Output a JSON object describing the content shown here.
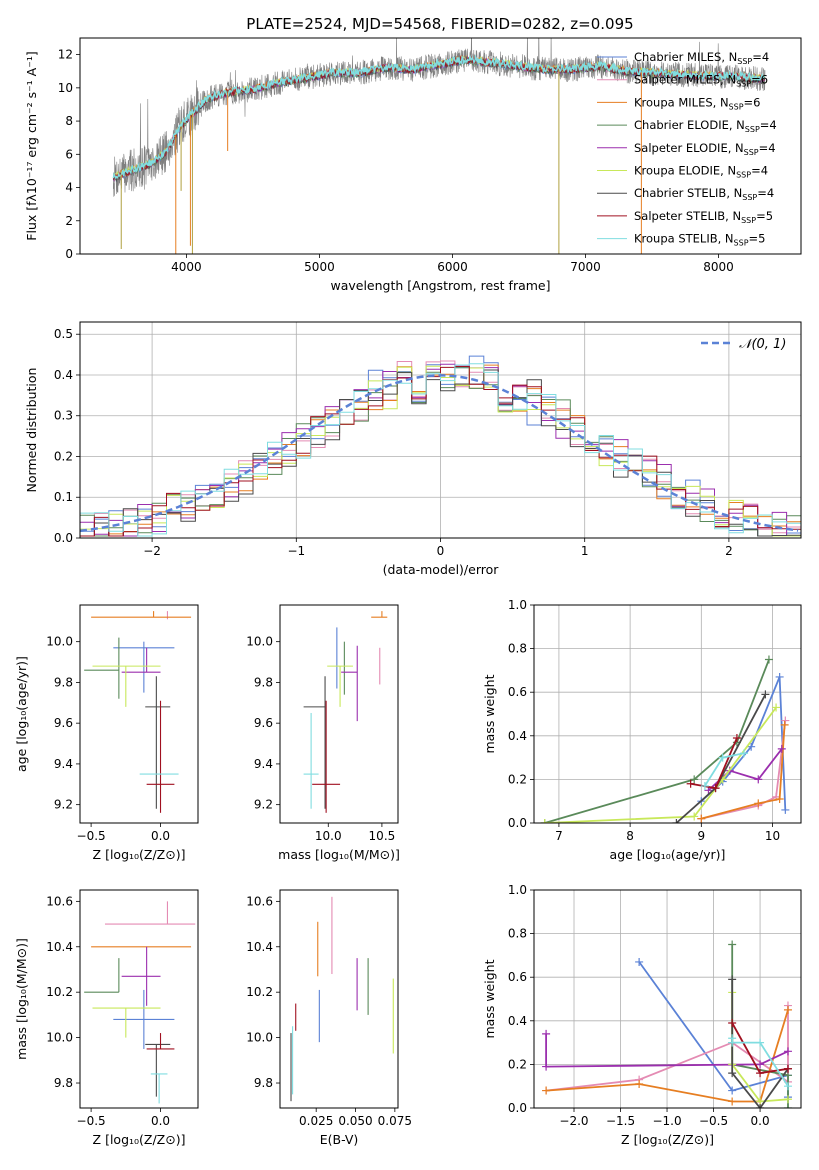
{
  "figure_title": "PLATE=2524, MJD=54568, FIBERID=0282, z=0.095",
  "colors": {
    "Chabrier MILES": "#5b82d6",
    "Salpeter MILES": "#e48bb3",
    "Kroupa MILES": "#e67e22",
    "Chabrier ELODIE": "#5a8a5a",
    "Salpeter ELODIE": "#9b2fae",
    "Kroupa ELODIE": "#c8e85a",
    "Chabrier STELIB": "#4a4a4a",
    "Salpeter STELIB": "#a01020",
    "Kroupa STELIB": "#80dde0"
  },
  "legend_spectrum": [
    {
      "label": "Chabrier MILES, N",
      "sub": "SSP",
      "suffix": "=4",
      "model": "Chabrier MILES"
    },
    {
      "label": "Salpeter MILES, N",
      "sub": "SSP",
      "suffix": "=6",
      "model": "Salpeter MILES"
    },
    {
      "label": "Kroupa MILES, N",
      "sub": "SSP",
      "suffix": "=6",
      "model": "Kroupa MILES"
    },
    {
      "label": "Chabrier ELODIE, N",
      "sub": "SSP",
      "suffix": "=4",
      "model": "Chabrier ELODIE"
    },
    {
      "label": "Salpeter ELODIE, N",
      "sub": "SSP",
      "suffix": "=4",
      "model": "Salpeter ELODIE"
    },
    {
      "label": "Kroupa ELODIE, N",
      "sub": "SSP",
      "suffix": "=4",
      "model": "Kroupa ELODIE"
    },
    {
      "label": "Chabrier STELIB, N",
      "sub": "SSP",
      "suffix": "=4",
      "model": "Chabrier STELIB"
    },
    {
      "label": "Salpeter STELIB, N",
      "sub": "SSP",
      "suffix": "=5",
      "model": "Salpeter STELIB"
    },
    {
      "label": "Kroupa STELIB, N",
      "sub": "SSP",
      "suffix": "=5",
      "model": "Kroupa STELIB"
    }
  ],
  "legend_distribution": {
    "label": "𝒩(0, 1)",
    "color": "#5b82d6"
  },
  "chart_data": [
    {
      "id": "spectrum",
      "type": "line",
      "xlabel": "wavelength [Angstrom, rest frame]",
      "ylabel": "Flux [fλ10⁻¹⁷ erg cm⁻² s⁻¹ A⁻¹]",
      "xlim": [
        3200,
        8620
      ],
      "ylim": [
        0,
        13
      ],
      "xticks": [
        4000,
        5000,
        6000,
        7000,
        8000
      ],
      "yticks": [
        0,
        2,
        4,
        6,
        8,
        10,
        12
      ],
      "grid": false,
      "legend": "right",
      "continuum": {
        "x": [
          3450,
          3550,
          3650,
          3750,
          3850,
          3950,
          4050,
          4150,
          4300,
          4500,
          4700,
          4900,
          5100,
          5300,
          5500,
          5700,
          5900,
          6100,
          6300,
          6500,
          6700,
          6900,
          7100,
          7300,
          7500,
          7700,
          7900,
          8100,
          8350
        ],
        "y": [
          4.6,
          4.9,
          5.2,
          5.5,
          6.2,
          7.6,
          8.5,
          9.3,
          9.7,
          9.9,
          10.3,
          10.6,
          10.9,
          10.9,
          11.2,
          11.1,
          11.4,
          11.7,
          11.5,
          11.3,
          11.1,
          11.1,
          11.3,
          11.0,
          10.9,
          10.8,
          10.7,
          10.7,
          10.5
        ]
      },
      "dips": [
        {
          "x": 3510,
          "y": 0.3
        },
        {
          "x": 3920,
          "y": 0.0
        },
        {
          "x": 3960,
          "y": 3.8
        },
        {
          "x": 4030,
          "y": 0.5
        },
        {
          "x": 4045,
          "y": 0.0
        },
        {
          "x": 4310,
          "y": 6.2
        },
        {
          "x": 6800,
          "y": 0.0
        },
        {
          "x": 7420,
          "y": 0.0
        }
      ]
    },
    {
      "id": "residuals",
      "type": "histogram",
      "xlabel": "(data-model)/error",
      "ylabel": "Normed distribution",
      "xlim": [
        -2.5,
        2.5
      ],
      "ylim": [
        0,
        0.53
      ],
      "xticks": [
        -2,
        -1,
        0,
        1,
        2
      ],
      "yticks": [
        0.0,
        0.1,
        0.2,
        0.3,
        0.4,
        0.5
      ],
      "grid": true,
      "legend": "top-right",
      "bin_width": 0.1,
      "reference": "N(0,1)"
    },
    {
      "id": "age-vs-Z",
      "type": "errorbar",
      "xlabel": "Z [log₁₀(Z/Z⊙)]",
      "ylabel": "age  [log₁₀(age/yr)]",
      "xlim": [
        -0.58,
        0.27
      ],
      "ylim": [
        9.11,
        10.18
      ],
      "xticks": [
        -0.5,
        0.0
      ],
      "yticks": [
        9.2,
        9.4,
        9.6,
        9.8,
        10.0
      ],
      "grid": false,
      "points": [
        {
          "model": "Chabrier MILES",
          "x": -0.12,
          "xerr": [
            0.22,
            0.22
          ],
          "y": 9.97,
          "yerr": [
            0.22,
            0.03
          ]
        },
        {
          "model": "Salpeter MILES",
          "x": 0.05,
          "xerr": [
            0.0,
            0.0
          ],
          "y": 10.11,
          "yerr": [
            0.0,
            0.04
          ]
        },
        {
          "model": "Kroupa MILES",
          "x": -0.05,
          "xerr": [
            0.45,
            0.27
          ],
          "y": 10.12,
          "yerr": [
            0.0,
            0.03
          ]
        },
        {
          "model": "Chabrier ELODIE",
          "x": -0.3,
          "xerr": [
            0.25,
            0.0
          ],
          "y": 9.86,
          "yerr": [
            0.14,
            0.16
          ]
        },
        {
          "model": "Salpeter ELODIE",
          "x": -0.1,
          "xerr": [
            0.18,
            0.1
          ],
          "y": 9.85,
          "yerr": [
            0.0,
            0.12
          ]
        },
        {
          "model": "Kroupa ELODIE",
          "x": -0.25,
          "xerr": [
            0.24,
            0.25
          ],
          "y": 9.88,
          "yerr": [
            0.2,
            0.0
          ]
        },
        {
          "model": "Chabrier STELIB",
          "x": -0.03,
          "xerr": [
            0.08,
            0.1
          ],
          "y": 9.68,
          "yerr": [
            0.5,
            0.15
          ]
        },
        {
          "model": "Salpeter STELIB",
          "x": 0.0,
          "xerr": [
            0.1,
            0.1
          ],
          "y": 9.3,
          "yerr": [
            0.14,
            0.41
          ]
        },
        {
          "model": "Kroupa STELIB",
          "x": -0.01,
          "xerr": [
            0.14,
            0.14
          ],
          "y": 9.35,
          "yerr": [
            0.0,
            0.0
          ]
        }
      ]
    },
    {
      "id": "age-vs-mass",
      "type": "errorbar",
      "xlabel": "mass [log₁₀(M/M⊙)]",
      "ylabel": "",
      "xlim": [
        9.55,
        10.65
      ],
      "ylim": [
        9.11,
        10.18
      ],
      "xticks": [
        10.0,
        10.5
      ],
      "yticks": [
        9.2,
        9.4,
        9.6,
        9.8,
        10.0
      ],
      "grid": false,
      "points": [
        {
          "model": "Chabrier MILES",
          "x": 10.08,
          "xerr": [
            0.0,
            0.0
          ],
          "y": 9.97,
          "yerr": [
            0.2,
            0.1
          ]
        },
        {
          "model": "Salpeter MILES",
          "x": 10.48,
          "xerr": [
            0.0,
            0.0
          ],
          "y": 9.97,
          "yerr": [
            0.18,
            0.0
          ]
        },
        {
          "model": "Kroupa MILES",
          "x": 10.5,
          "xerr": [
            0.1,
            0.05
          ],
          "y": 10.12,
          "yerr": [
            0.0,
            0.03
          ]
        },
        {
          "model": "Chabrier ELODIE",
          "x": 10.15,
          "xerr": [
            0.0,
            0.0
          ],
          "y": 9.86,
          "yerr": [
            0.12,
            0.14
          ]
        },
        {
          "model": "Salpeter ELODIE",
          "x": 10.27,
          "xerr": [
            0.15,
            0.0
          ],
          "y": 9.85,
          "yerr": [
            0.24,
            0.13
          ]
        },
        {
          "model": "Kroupa ELODIE",
          "x": 10.11,
          "xerr": [
            0.12,
            0.12
          ],
          "y": 9.88,
          "yerr": [
            0.2,
            0.0
          ]
        },
        {
          "model": "Chabrier STELIB",
          "x": 9.97,
          "xerr": [
            0.2,
            0.0
          ],
          "y": 9.68,
          "yerr": [
            0.5,
            0.15
          ]
        },
        {
          "model": "Salpeter STELIB",
          "x": 9.98,
          "xerr": [
            0.13,
            0.13
          ],
          "y": 9.3,
          "yerr": [
            0.14,
            0.41
          ]
        },
        {
          "model": "Kroupa STELIB",
          "x": 9.84,
          "xerr": [
            0.07,
            0.07
          ],
          "y": 9.35,
          "yerr": [
            0.17,
            0.3
          ]
        }
      ]
    },
    {
      "id": "weight-vs-age",
      "type": "line",
      "xlabel": "age  [log₁₀(age/yr)]",
      "ylabel": "mass weight",
      "xlim": [
        6.65,
        10.4
      ],
      "ylim": [
        0,
        1
      ],
      "xticks": [
        7,
        8,
        9,
        10
      ],
      "yticks": [
        0.0,
        0.2,
        0.4,
        0.6,
        0.8,
        1.0
      ],
      "grid": true,
      "series": [
        {
          "model": "Chabrier MILES",
          "x": [
            9.0,
            9.3,
            9.7,
            10.1,
            10.18
          ],
          "y": [
            0.1,
            0.19,
            0.35,
            0.67,
            0.06
          ]
        },
        {
          "model": "Salpeter MILES",
          "x": [
            9.0,
            9.8,
            10.05,
            10.18
          ],
          "y": [
            0.02,
            0.08,
            0.12,
            0.47
          ]
        },
        {
          "model": "Kroupa MILES",
          "x": [
            9.0,
            9.8,
            10.1,
            10.17
          ],
          "y": [
            0.02,
            0.09,
            0.11,
            0.45
          ]
        },
        {
          "model": "Chabrier ELODIE",
          "x": [
            6.8,
            8.9,
            9.5,
            9.95
          ],
          "y": [
            0.0,
            0.2,
            0.37,
            0.75
          ]
        },
        {
          "model": "Salpeter ELODIE",
          "x": [
            9.1,
            9.4,
            9.8,
            10.13
          ],
          "y": [
            0.15,
            0.24,
            0.2,
            0.34
          ]
        },
        {
          "model": "Kroupa ELODIE",
          "x": [
            6.8,
            8.9,
            9.3,
            10.05
          ],
          "y": [
            0.0,
            0.03,
            0.2,
            0.53
          ]
        },
        {
          "model": "Chabrier STELIB",
          "x": [
            8.65,
            9.2,
            9.9
          ],
          "y": [
            0.0,
            0.16,
            0.59
          ]
        },
        {
          "model": "Salpeter STELIB",
          "x": [
            8.85,
            9.2,
            9.5
          ],
          "y": [
            0.18,
            0.16,
            0.39
          ]
        },
        {
          "model": "Kroupa STELIB",
          "x": [
            9.05,
            9.3,
            9.6
          ],
          "y": [
            0.17,
            0.3,
            0.32
          ]
        }
      ]
    },
    {
      "id": "mass-vs-Z",
      "type": "errorbar",
      "xlabel": "Z [log₁₀(Z/Z⊙)]",
      "ylabel": "mass [log₁₀(M/M⊙)]",
      "xlim": [
        -0.58,
        0.27
      ],
      "ylim": [
        9.69,
        10.65
      ],
      "xticks": [
        -0.5,
        0.0
      ],
      "yticks": [
        9.8,
        10.0,
        10.2,
        10.4,
        10.6
      ],
      "grid": false,
      "points": [
        {
          "model": "Chabrier MILES",
          "x": -0.12,
          "xerr": [
            0.22,
            0.22
          ],
          "y": 10.08,
          "yerr": [
            0.13,
            0.13
          ]
        },
        {
          "model": "Salpeter MILES",
          "x": 0.05,
          "xerr": [
            0.45,
            0.2
          ],
          "y": 10.5,
          "yerr": [
            0.0,
            0.1
          ]
        },
        {
          "model": "Kroupa MILES",
          "x": -0.05,
          "xerr": [
            0.45,
            0.27
          ],
          "y": 10.4,
          "yerr": [
            0.0,
            0.0
          ]
        },
        {
          "model": "Chabrier ELODIE",
          "x": -0.3,
          "xerr": [
            0.25,
            0.0
          ],
          "y": 10.2,
          "yerr": [
            0.0,
            0.15
          ]
        },
        {
          "model": "Salpeter ELODIE",
          "x": -0.1,
          "xerr": [
            0.18,
            0.1
          ],
          "y": 10.27,
          "yerr": [
            0.13,
            0.13
          ]
        },
        {
          "model": "Kroupa ELODIE",
          "x": -0.25,
          "xerr": [
            0.24,
            0.25
          ],
          "y": 10.13,
          "yerr": [
            0.13,
            0.0
          ]
        },
        {
          "model": "Chabrier STELIB",
          "x": -0.03,
          "xerr": [
            0.08,
            0.1
          ],
          "y": 9.97,
          "yerr": [
            0.23,
            0.0
          ]
        },
        {
          "model": "Salpeter STELIB",
          "x": 0.0,
          "xerr": [
            0.1,
            0.1
          ],
          "y": 9.95,
          "yerr": [
            0.0,
            0.07
          ]
        },
        {
          "model": "Kroupa STELIB",
          "x": -0.01,
          "xerr": [
            0.06,
            0.06
          ],
          "y": 9.84,
          "yerr": [
            0.13,
            0.0
          ]
        }
      ]
    },
    {
      "id": "mass-vs-ebv",
      "type": "errorbar",
      "xlabel": "E(B-V)",
      "ylabel": "",
      "xlim": [
        0.002,
        0.077
      ],
      "ylim": [
        9.69,
        10.65
      ],
      "xticks": [
        0.025,
        0.05,
        0.075
      ],
      "xticklabels": [
        "0.025",
        "0.050",
        "0.075"
      ],
      "yticks": [
        9.8,
        10.0,
        10.2,
        10.4,
        10.6
      ],
      "grid": false,
      "points": [
        {
          "model": "Chabrier MILES",
          "x": 0.027,
          "xerr": [
            0,
            0
          ],
          "y": 10.08,
          "yerr": [
            0.1,
            0.13
          ]
        },
        {
          "model": "Salpeter MILES",
          "x": 0.035,
          "xerr": [
            0,
            0
          ],
          "y": 10.45,
          "yerr": [
            0.17,
            0.17
          ]
        },
        {
          "model": "Kroupa MILES",
          "x": 0.026,
          "xerr": [
            0,
            0
          ],
          "y": 10.4,
          "yerr": [
            0.13,
            0.11
          ]
        },
        {
          "model": "Chabrier ELODIE",
          "x": 0.058,
          "xerr": [
            0,
            0
          ],
          "y": 10.2,
          "yerr": [
            0.1,
            0.15
          ]
        },
        {
          "model": "Salpeter ELODIE",
          "x": 0.051,
          "xerr": [
            0,
            0
          ],
          "y": 10.27,
          "yerr": [
            0.15,
            0.08
          ]
        },
        {
          "model": "Kroupa ELODIE",
          "x": 0.074,
          "xerr": [
            0,
            0
          ],
          "y": 10.13,
          "yerr": [
            0.2,
            0.13
          ]
        },
        {
          "model": "Chabrier STELIB",
          "x": 0.009,
          "xerr": [
            0,
            0
          ],
          "y": 9.92,
          "yerr": [
            0.2,
            0.1
          ]
        },
        {
          "model": "Salpeter STELIB",
          "x": 0.012,
          "xerr": [
            0,
            0
          ],
          "y": 10.08,
          "yerr": [
            0.05,
            0.07
          ]
        },
        {
          "model": "Kroupa STELIB",
          "x": 0.01,
          "xerr": [
            0,
            0
          ],
          "y": 9.9,
          "yerr": [
            0.15,
            0.15
          ]
        }
      ]
    },
    {
      "id": "weight-vs-Z",
      "type": "line",
      "xlabel": "Z [log₁₀(Z/Z⊙)]",
      "ylabel": "mass weight",
      "xlim": [
        -2.43,
        0.44
      ],
      "ylim": [
        0,
        1
      ],
      "xticks": [
        -2.0,
        -1.5,
        -1.0,
        -0.5,
        0.0
      ],
      "yticks": [
        0.0,
        0.2,
        0.4,
        0.6,
        0.8,
        1.0
      ],
      "grid": true,
      "series": [
        {
          "model": "Chabrier MILES",
          "x": [
            -1.3,
            -0.3,
            0.3,
            0.3
          ],
          "y": [
            0.67,
            0.08,
            0.15,
            0.05
          ]
        },
        {
          "model": "Salpeter MILES",
          "x": [
            -2.3,
            -1.3,
            -0.3,
            0.3,
            0.3
          ],
          "y": [
            0.08,
            0.13,
            0.3,
            0.12,
            0.47
          ]
        },
        {
          "model": "Kroupa MILES",
          "x": [
            -2.3,
            -1.3,
            -0.3,
            0.0,
            0.3
          ],
          "y": [
            0.08,
            0.11,
            0.03,
            0.03,
            0.45
          ]
        },
        {
          "model": "Chabrier ELODIE",
          "x": [
            -0.3,
            -0.3,
            0.3,
            0.3
          ],
          "y": [
            0.75,
            0.2,
            0.15,
            0.0
          ]
        },
        {
          "model": "Salpeter ELODIE",
          "x": [
            -2.3,
            -2.3,
            0.0,
            0.3
          ],
          "y": [
            0.34,
            0.19,
            0.2,
            0.26
          ]
        },
        {
          "model": "Kroupa ELODIE",
          "x": [
            -0.3,
            -0.3,
            0.0,
            0.3
          ],
          "y": [
            0.53,
            0.2,
            0.03,
            0.04
          ]
        },
        {
          "model": "Chabrier STELIB",
          "x": [
            -0.3,
            -0.3,
            0.0,
            0.3
          ],
          "y": [
            0.59,
            0.16,
            0.0,
            0.18
          ]
        },
        {
          "model": "Salpeter STELIB",
          "x": [
            -0.3,
            0.0,
            0.3
          ],
          "y": [
            0.39,
            0.16,
            0.18
          ]
        },
        {
          "model": "Kroupa STELIB",
          "x": [
            -0.3,
            -0.3,
            0.0,
            0.3
          ],
          "y": [
            0.32,
            0.3,
            0.3,
            0.1
          ]
        }
      ]
    }
  ]
}
